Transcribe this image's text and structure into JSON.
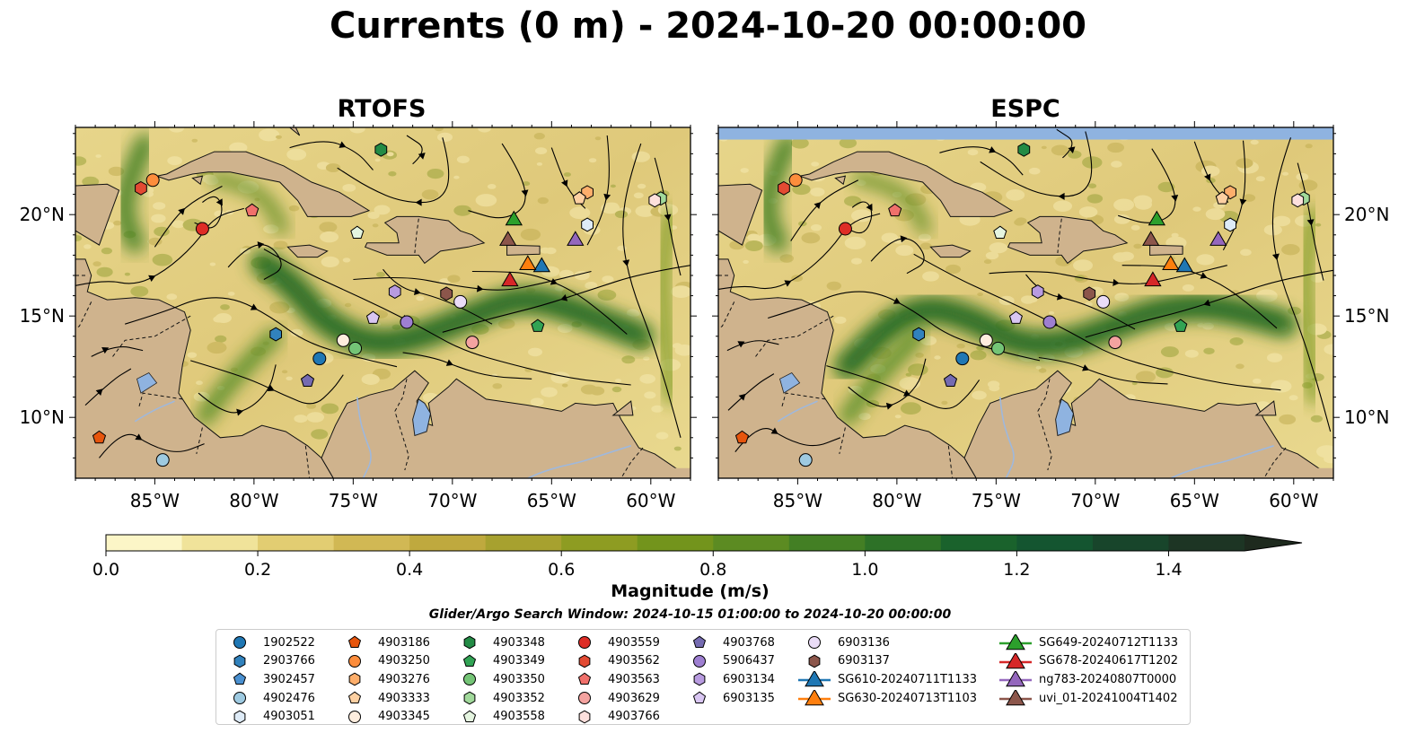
{
  "figure": {
    "title": "Currents (0 m) - 2024-10-20 00:00:00",
    "panels": [
      {
        "title": "RTOFS"
      },
      {
        "title": "ESPC"
      }
    ],
    "lon_ticks": [
      "85°W",
      "80°W",
      "75°W",
      "70°W",
      "65°W",
      "60°W"
    ],
    "lat_ticks_left": [
      "20°N",
      "15°N",
      "10°N"
    ],
    "lat_ticks_right": [
      "20°N",
      "15°N",
      "10°N"
    ],
    "extent": {
      "lon_min": -89,
      "lon_max": -58,
      "lat_min": 7,
      "lat_max": 24.3
    }
  },
  "colorbar": {
    "label": "Magnitude (m/s)",
    "ticks": [
      "0.0",
      "0.2",
      "0.4",
      "0.6",
      "0.8",
      "1.0",
      "1.2",
      "1.4"
    ],
    "range": [
      0,
      1.5
    ],
    "colors": [
      "#fcf6c7",
      "#f0e39a",
      "#e2cd72",
      "#d1b854",
      "#bfa93e",
      "#a7a12f",
      "#8e9c22",
      "#73941c",
      "#5c8b22",
      "#437f24",
      "#2d7127",
      "#1a622c",
      "#145530",
      "#18452b",
      "#1d3524",
      "#1e2a1e"
    ]
  },
  "search_window": "Glider/Argo Search Window: 2024-10-15 01:00:00 to 2024-10-20 00:00:00",
  "legend": [
    [
      {
        "label": "1902522",
        "marker": "circle",
        "color": "#1f77b4"
      },
      {
        "label": "2903766",
        "marker": "hexagon",
        "color": "#3182bd"
      },
      {
        "label": "3902457",
        "marker": "pentagon",
        "color": "#4a90d0"
      },
      {
        "label": "4902476",
        "marker": "circle",
        "color": "#9ecae1"
      },
      {
        "label": "4903051",
        "marker": "hexagon",
        "color": "#deebf7"
      }
    ],
    [
      {
        "label": "4903186",
        "marker": "pentagon",
        "color": "#e6550d"
      },
      {
        "label": "4903250",
        "marker": "circle",
        "color": "#fd8d3c"
      },
      {
        "label": "4903276",
        "marker": "hexagon",
        "color": "#fdae6b"
      },
      {
        "label": "4903333",
        "marker": "pentagon",
        "color": "#fdd0a2"
      },
      {
        "label": "4903345",
        "marker": "circle",
        "color": "#feedde"
      }
    ],
    [
      {
        "label": "4903348",
        "marker": "hexagon",
        "color": "#238b45"
      },
      {
        "label": "4903349",
        "marker": "pentagon",
        "color": "#31a354"
      },
      {
        "label": "4903350",
        "marker": "circle",
        "color": "#74c476"
      },
      {
        "label": "4903352",
        "marker": "hexagon",
        "color": "#a1d99b"
      },
      {
        "label": "4903558",
        "marker": "pentagon",
        "color": "#e5f5e0"
      }
    ],
    [
      {
        "label": "4903559",
        "marker": "circle",
        "color": "#de2d26"
      },
      {
        "label": "4903562",
        "marker": "hexagon",
        "color": "#e34a33"
      },
      {
        "label": "4903563",
        "marker": "pentagon",
        "color": "#f0706b"
      },
      {
        "label": "4903629",
        "marker": "circle",
        "color": "#f4a3a0"
      },
      {
        "label": "4903766",
        "marker": "hexagon",
        "color": "#fde0dd"
      }
    ],
    [
      {
        "label": "4903768",
        "marker": "pentagon",
        "color": "#756bb1"
      },
      {
        "label": "5906437",
        "marker": "circle",
        "color": "#9e7fd1"
      },
      {
        "label": "6903134",
        "marker": "hexagon",
        "color": "#b89be0"
      },
      {
        "label": "6903135",
        "marker": "pentagon",
        "color": "#d9c6f2"
      }
    ],
    [
      {
        "label": "6903136",
        "marker": "circle",
        "color": "#eadcf7"
      },
      {
        "label": "6903137",
        "marker": "hexagon",
        "color": "#8c564b"
      },
      {
        "label": "SG610-20240711T1133",
        "marker": "triangle",
        "color": "#1f77b4"
      },
      {
        "label": "SG630-20240713T1103",
        "marker": "triangle",
        "color": "#ff7f0e"
      }
    ],
    [
      {
        "label": "SG649-20240712T1133",
        "marker": "triangle",
        "color": "#2ca02c"
      },
      {
        "label": "SG678-20240617T1202",
        "marker": "triangle",
        "color": "#d62728"
      },
      {
        "label": "ng783-20240807T0000",
        "marker": "triangle",
        "color": "#9467bd"
      },
      {
        "label": "uvi_01-20241004T1402",
        "marker": "triangle",
        "color": "#8c564b"
      }
    ]
  ],
  "platforms": [
    {
      "id": "1902522",
      "marker": "circle",
      "color": "#1f77b4",
      "lon": -76.7,
      "lat": 12.9
    },
    {
      "id": "2903766",
      "marker": "hexagon",
      "color": "#3182bd",
      "lon": -78.9,
      "lat": 14.1
    },
    {
      "id": "4902476",
      "marker": "circle",
      "color": "#9ecae1",
      "lon": -84.6,
      "lat": 7.9
    },
    {
      "id": "4903051",
      "marker": "hexagon",
      "color": "#deebf7",
      "lon": -63.2,
      "lat": 19.5
    },
    {
      "id": "4903186",
      "marker": "pentagon",
      "color": "#e6550d",
      "lon": -87.8,
      "lat": 9.0
    },
    {
      "id": "4903250",
      "marker": "circle",
      "color": "#fd8d3c",
      "lon": -85.1,
      "lat": 21.7
    },
    {
      "id": "4903276",
      "marker": "hexagon",
      "color": "#fdae6b",
      "lon": -63.2,
      "lat": 21.1
    },
    {
      "id": "4903333",
      "marker": "pentagon",
      "color": "#fdd0a2",
      "lon": -63.6,
      "lat": 20.8
    },
    {
      "id": "4903345",
      "marker": "circle",
      "color": "#feedde",
      "lon": -75.5,
      "lat": 13.8
    },
    {
      "id": "4903348",
      "marker": "hexagon",
      "color": "#238b45",
      "lon": -73.6,
      "lat": 23.2
    },
    {
      "id": "4903349",
      "marker": "pentagon",
      "color": "#31a354",
      "lon": -65.7,
      "lat": 14.5
    },
    {
      "id": "4903350",
      "marker": "circle",
      "color": "#74c476",
      "lon": -74.9,
      "lat": 13.4
    },
    {
      "id": "4903352",
      "marker": "hexagon",
      "color": "#a1d99b",
      "lon": -59.5,
      "lat": 20.8
    },
    {
      "id": "4903558",
      "marker": "pentagon",
      "color": "#e5f5e0",
      "lon": -74.8,
      "lat": 19.1
    },
    {
      "id": "4903559",
      "marker": "circle",
      "color": "#de2d26",
      "lon": -82.6,
      "lat": 19.3
    },
    {
      "id": "4903562",
      "marker": "hexagon",
      "color": "#e34a33",
      "lon": -85.7,
      "lat": 21.3
    },
    {
      "id": "4903563",
      "marker": "pentagon",
      "color": "#f0706b",
      "lon": -80.1,
      "lat": 20.2
    },
    {
      "id": "4903629",
      "marker": "circle",
      "color": "#f4a3a0",
      "lon": -69.0,
      "lat": 13.7
    },
    {
      "id": "4903766",
      "marker": "hexagon",
      "color": "#fde0dd",
      "lon": -59.8,
      "lat": 20.7
    },
    {
      "id": "4903768",
      "marker": "pentagon",
      "color": "#756bb1",
      "lon": -77.3,
      "lat": 11.8
    },
    {
      "id": "5906437",
      "marker": "circle",
      "color": "#9e7fd1",
      "lon": -72.3,
      "lat": 14.7
    },
    {
      "id": "6903134",
      "marker": "hexagon",
      "color": "#b89be0",
      "lon": -72.9,
      "lat": 16.2
    },
    {
      "id": "6903135",
      "marker": "pentagon",
      "color": "#d9c6f2",
      "lon": -74.0,
      "lat": 14.9
    },
    {
      "id": "6903136",
      "marker": "circle",
      "color": "#eadcf7",
      "lon": -69.6,
      "lat": 15.7
    },
    {
      "id": "6903137",
      "marker": "hexagon",
      "color": "#8c564b",
      "lon": -70.3,
      "lat": 16.1
    },
    {
      "id": "SG610-20240711T1133",
      "marker": "triangle",
      "color": "#1f77b4",
      "lon": -65.5,
      "lat": 17.5
    },
    {
      "id": "SG630-20240713T1103",
      "marker": "triangle",
      "color": "#ff7f0e",
      "lon": -66.2,
      "lat": 17.6
    },
    {
      "id": "SG649-20240712T1133",
      "marker": "triangle",
      "color": "#2ca02c",
      "lon": -66.9,
      "lat": 19.8
    },
    {
      "id": "SG678-20240617T1202",
      "marker": "triangle",
      "color": "#d62728",
      "lon": -67.1,
      "lat": 16.8
    },
    {
      "id": "ng783-20240807T0000",
      "marker": "triangle",
      "color": "#9467bd",
      "lon": -63.8,
      "lat": 18.8
    },
    {
      "id": "uvi_01-20241004T1402",
      "marker": "triangle",
      "color": "#8c564b",
      "lon": -67.2,
      "lat": 18.8
    }
  ],
  "colors": {
    "land": "#cfb38d",
    "lakes": "#8fb3e0",
    "rivers": "#9fb8dc",
    "no_data": "#8fb3e0",
    "streamline": "#000000"
  }
}
